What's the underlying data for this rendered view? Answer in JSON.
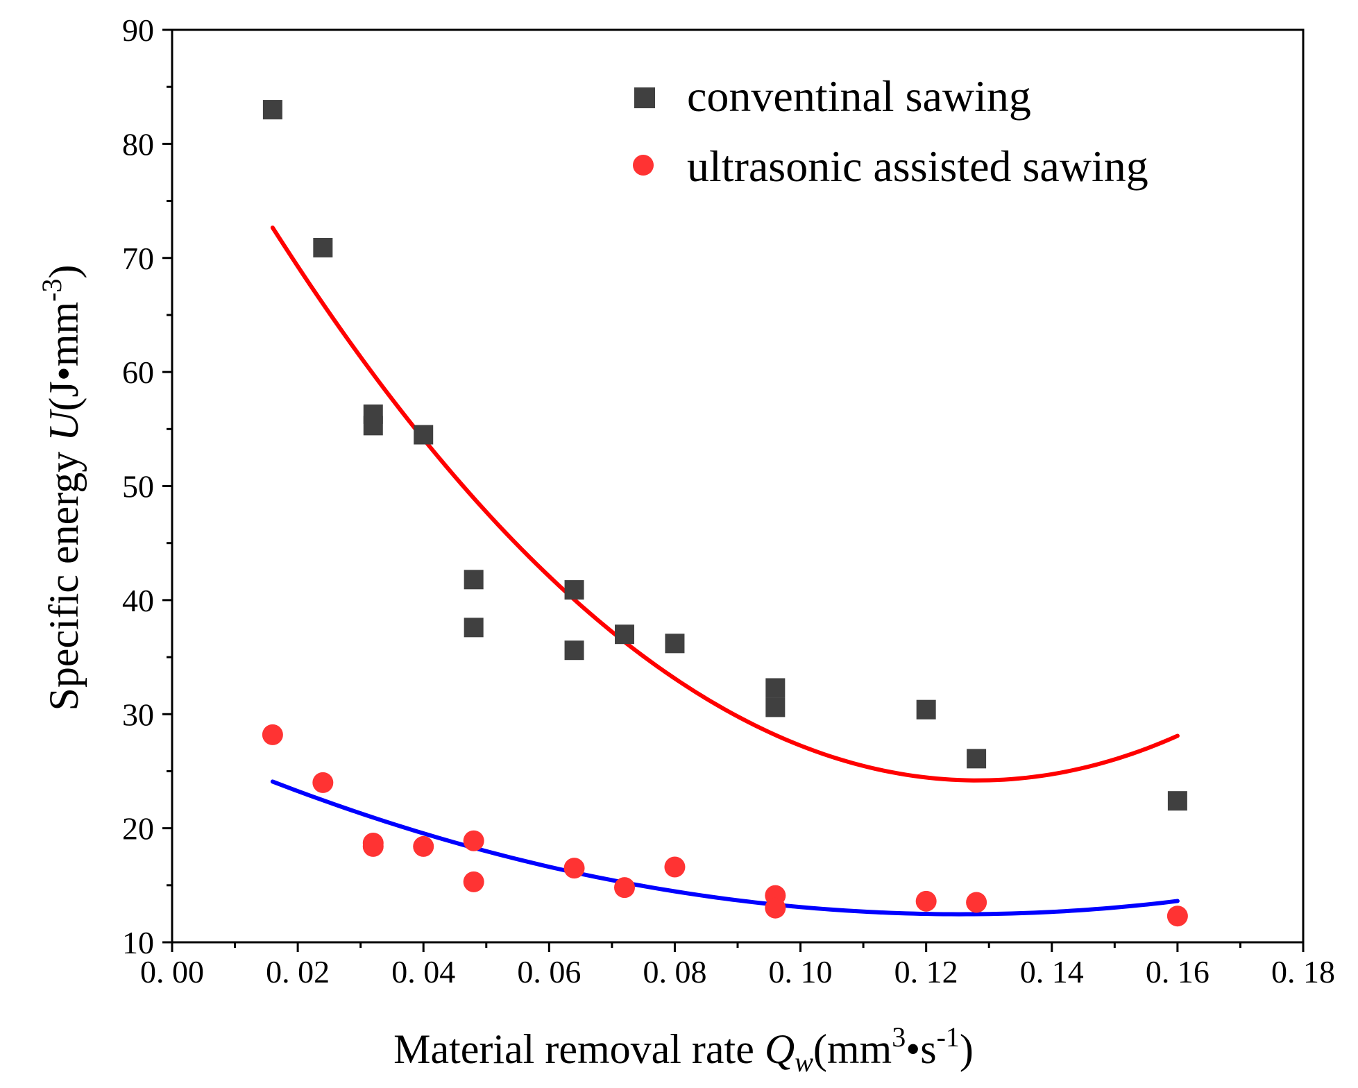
{
  "chart_data": {
    "type": "scatter",
    "xlabel": {
      "prefix": "Material removal rate ",
      "var": "Q",
      "var_sub": "w",
      "unit_open": "(mm",
      "unit_sup1": "3",
      "unit_mid": "•s",
      "unit_sup2": "-1",
      "unit_close": ")"
    },
    "ylabel": {
      "prefix": "Specific energy ",
      "var": "U",
      "unit_open": "(J•mm",
      "unit_sup": "-3",
      "unit_close": ")"
    },
    "xlim": [
      0.0,
      0.18
    ],
    "ylim": [
      10,
      90
    ],
    "x_ticks": [
      {
        "value": 0.0,
        "label": "0. 00"
      },
      {
        "value": 0.02,
        "label": "0. 02"
      },
      {
        "value": 0.04,
        "label": "0. 04"
      },
      {
        "value": 0.06,
        "label": "0. 06"
      },
      {
        "value": 0.08,
        "label": "0. 08"
      },
      {
        "value": 0.1,
        "label": "0. 10"
      },
      {
        "value": 0.12,
        "label": "0. 12"
      },
      {
        "value": 0.14,
        "label": "0. 14"
      },
      {
        "value": 0.16,
        "label": "0. 16"
      },
      {
        "value": 0.18,
        "label": "0. 18"
      }
    ],
    "y_ticks": [
      {
        "value": 10,
        "label": "10"
      },
      {
        "value": 20,
        "label": "20"
      },
      {
        "value": 30,
        "label": "30"
      },
      {
        "value": 40,
        "label": "40"
      },
      {
        "value": 50,
        "label": "50"
      },
      {
        "value": 60,
        "label": "60"
      },
      {
        "value": 70,
        "label": "70"
      },
      {
        "value": 80,
        "label": "80"
      },
      {
        "value": 90,
        "label": "90"
      }
    ],
    "legend_position": "top-right",
    "grid": false,
    "series": [
      {
        "name": "conventinal sawing",
        "marker": "square",
        "color": "#404040",
        "points": [
          [
            0.016,
            83.0
          ],
          [
            0.024,
            70.9
          ],
          [
            0.032,
            56.3
          ],
          [
            0.032,
            55.3
          ],
          [
            0.04,
            54.5
          ],
          [
            0.048,
            41.8
          ],
          [
            0.048,
            37.6
          ],
          [
            0.064,
            40.9
          ],
          [
            0.064,
            35.6
          ],
          [
            0.072,
            37.0
          ],
          [
            0.08,
            36.2
          ],
          [
            0.096,
            32.3
          ],
          [
            0.096,
            30.6
          ],
          [
            0.12,
            30.4
          ],
          [
            0.128,
            26.1
          ],
          [
            0.16,
            22.4
          ]
        ]
      },
      {
        "name": "ultrasonic assisted sawing",
        "marker": "circle",
        "color": "#ff3333",
        "points": [
          [
            0.016,
            28.2
          ],
          [
            0.024,
            24.0
          ],
          [
            0.032,
            18.7
          ],
          [
            0.032,
            18.4
          ],
          [
            0.04,
            18.4
          ],
          [
            0.048,
            18.9
          ],
          [
            0.048,
            15.3
          ],
          [
            0.064,
            16.5
          ],
          [
            0.072,
            14.8
          ],
          [
            0.08,
            16.6
          ],
          [
            0.096,
            14.1
          ],
          [
            0.096,
            13.0
          ],
          [
            0.12,
            13.6
          ],
          [
            0.128,
            13.5
          ],
          [
            0.16,
            12.3
          ]
        ]
      }
    ],
    "fits": [
      {
        "for": "conventinal sawing",
        "color": "#ff0000",
        "x_range": [
          0.016,
          0.16
        ],
        "points": [
          [
            0.016,
            72.6
          ],
          [
            0.064,
            40.2
          ],
          [
            0.128,
            24.0
          ],
          [
            0.16,
            28.2
          ]
        ]
      },
      {
        "for": "ultrasonic assisted sawing",
        "color": "#0000ff",
        "x_range": [
          0.016,
          0.16
        ],
        "points": [
          [
            0.016,
            24.1
          ],
          [
            0.064,
            16.1
          ],
          [
            0.128,
            12.5
          ],
          [
            0.16,
            13.6
          ]
        ]
      }
    ]
  }
}
